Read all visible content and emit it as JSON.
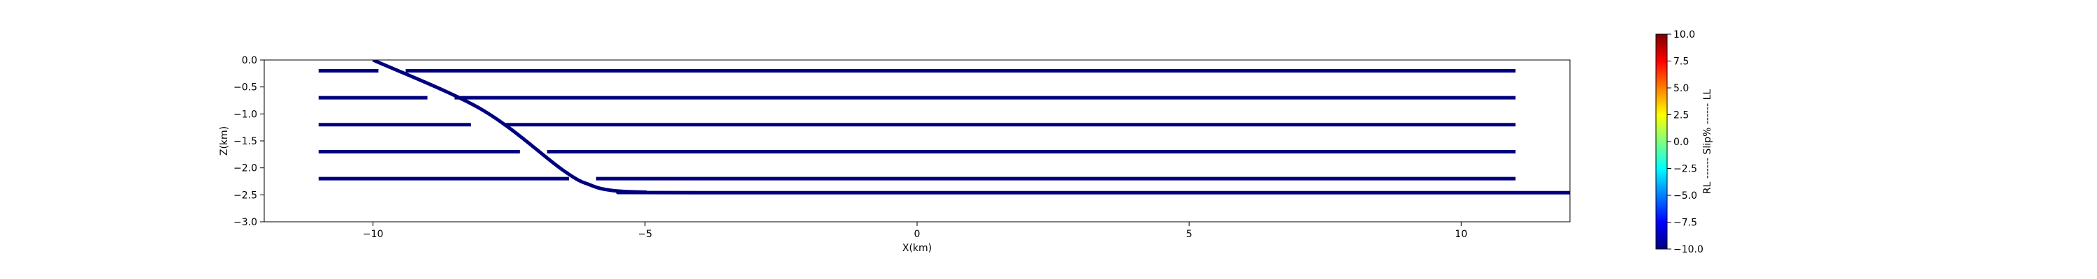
{
  "chart_data": {
    "type": "line",
    "title": "",
    "xlabel": "X(km)",
    "ylabel": "Z(km)",
    "xlim": [
      -12,
      12
    ],
    "ylim": [
      -3.0,
      0.0
    ],
    "xticks": [
      -10,
      -5,
      0,
      5,
      10
    ],
    "xtick_labels": [
      "−10",
      "−5",
      "0",
      "5",
      "10"
    ],
    "yticks": [
      0.0,
      -0.5,
      -1.0,
      -1.5,
      -2.0,
      -2.5,
      -3.0
    ],
    "ytick_labels": [
      "0.0",
      "−0.5",
      "−1.0",
      "−1.5",
      "−2.0",
      "−2.5",
      "−3.0"
    ],
    "grid": false,
    "line_color": "#00007f",
    "series": [
      {
        "segments": [
          {
            "x": [
              -11,
              -9.9
            ],
            "y": [
              -0.2,
              -0.2
            ]
          },
          {
            "x": [
              -9.4,
              11.0
            ],
            "y": [
              -0.2,
              -0.2
            ]
          },
          {
            "x": [
              -11,
              -9.0
            ],
            "y": [
              -0.7,
              -0.7
            ]
          },
          {
            "x": [
              -8.5,
              11.0
            ],
            "y": [
              -0.7,
              -0.7
            ]
          },
          {
            "x": [
              -11,
              -8.2
            ],
            "y": [
              -1.2,
              -1.2
            ]
          },
          {
            "x": [
              -7.6,
              11.0
            ],
            "y": [
              -1.2,
              -1.2
            ]
          },
          {
            "x": [
              -11,
              -7.3
            ],
            "y": [
              -1.7,
              -1.7
            ]
          },
          {
            "x": [
              -6.8,
              11.0
            ],
            "y": [
              -1.7,
              -1.7
            ]
          },
          {
            "x": [
              -11,
              -6.4
            ],
            "y": [
              -2.2,
              -2.2
            ]
          },
          {
            "x": [
              -5.9,
              11.0
            ],
            "y": [
              -2.2,
              -2.2
            ]
          }
        ]
      },
      {
        "x": [
          -10.0,
          -8.0,
          -6.5,
          -6.0,
          -5.6,
          -5.0,
          -4.0,
          12.0
        ],
        "y": [
          0.0,
          -0.92,
          -2.05,
          -2.32,
          -2.42,
          -2.45,
          -2.46,
          -2.46
        ]
      }
    ],
    "colorbar": {
      "label": "RL ------ Slip% ------ LL",
      "range": [
        -10.0,
        10.0
      ],
      "ticks": [
        10.0,
        7.5,
        5.0,
        2.5,
        0.0,
        -2.5,
        -5.0,
        -7.5,
        -10.0
      ],
      "tick_labels": [
        "10.0",
        "7.5",
        "5.0",
        "2.5",
        "0.0",
        "−2.5",
        "−5.0",
        "−7.5",
        "−10.0"
      ],
      "colormap": "jet",
      "colors": [
        "#00007f",
        "#0000ff",
        "#007fff",
        "#00ffff",
        "#7fff7f",
        "#ffff00",
        "#ff7f00",
        "#ff0000",
        "#7f0000"
      ]
    }
  }
}
